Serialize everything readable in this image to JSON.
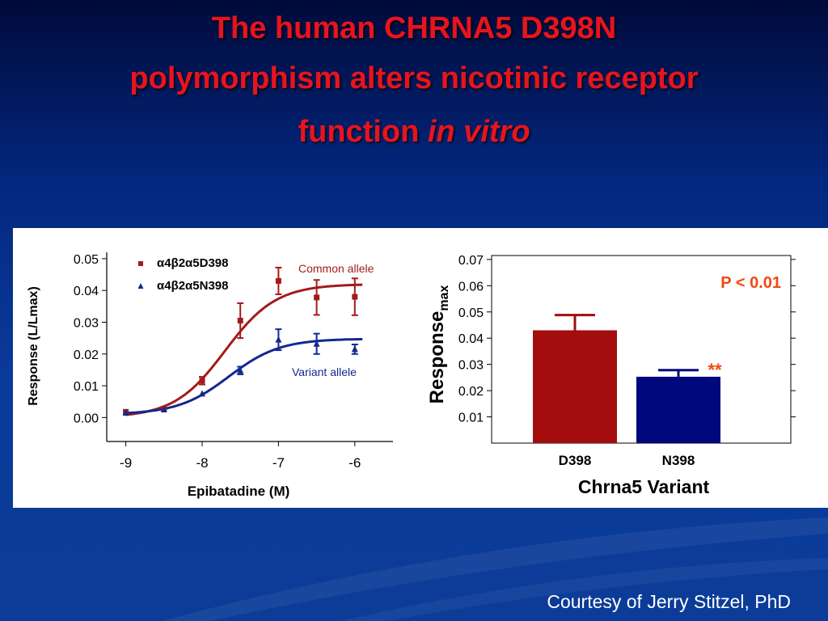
{
  "slide": {
    "title_line1": "The human CHRNA5 D398N",
    "title_line2": "polymorphism alters nicotinic receptor",
    "title_line3_prefix": "function ",
    "title_line3_italic": "in vitro",
    "credit": "Courtesy of Jerry Stitzel, PhD"
  },
  "colors": {
    "title": "#e8141c",
    "red_series": "#a31b1b",
    "blue_series": "#13288f",
    "bar_d398": "#a30d0d",
    "bar_n398": "#00087e",
    "p_value": "#f04a10"
  },
  "chart_data": [
    {
      "type": "scatter",
      "xlabel": "Epibatadine (M)",
      "ylabel": "Response  (L/Lmax)",
      "xlim": [
        -9.25,
        -5.5
      ],
      "ylim": [
        -0.005,
        0.051
      ],
      "x_ticks": [
        -9,
        -8,
        -7,
        -6
      ],
      "x_tick_labels": [
        "-9",
        "-8",
        "-7",
        "-6"
      ],
      "y_ticks": [
        0.0,
        0.01,
        0.02,
        0.03,
        0.04,
        0.05
      ],
      "y_tick_labels": [
        "0.00",
        "0.01",
        "0.02",
        "0.03",
        "0.04",
        "0.05"
      ],
      "legend_position": "top-left",
      "series": [
        {
          "name": "α4β2α5D398",
          "marker": "square",
          "annotation": "Common allele",
          "points": [
            {
              "x": -9.0,
              "y": 0.0018,
              "err": 0.0003
            },
            {
              "x": -8.5,
              "y": 0.0028,
              "err": 0.0003
            },
            {
              "x": -8.0,
              "y": 0.0116,
              "err": 0.0012
            },
            {
              "x": -7.5,
              "y": 0.0305,
              "err": 0.0055
            },
            {
              "x": -7.0,
              "y": 0.043,
              "err": 0.0042
            },
            {
              "x": -6.5,
              "y": 0.0378,
              "err": 0.0055
            },
            {
              "x": -6.0,
              "y": 0.038,
              "err": 0.0058
            }
          ],
          "fit": {
            "bottom": 0.0,
            "top": 0.042,
            "ec50_log": -7.7,
            "hill": 1.3
          }
        },
        {
          "name": "α4β2α5N398",
          "marker": "triangle",
          "annotation": "Variant allele",
          "points": [
            {
              "x": -9.0,
              "y": 0.0015,
              "err": 0.0003
            },
            {
              "x": -8.5,
              "y": 0.0025,
              "err": 0.0003
            },
            {
              "x": -8.0,
              "y": 0.0075,
              "err": 0.0005
            },
            {
              "x": -7.5,
              "y": 0.0148,
              "err": 0.0012
            },
            {
              "x": -7.0,
              "y": 0.0245,
              "err": 0.0033
            },
            {
              "x": -6.5,
              "y": 0.0232,
              "err": 0.0032
            },
            {
              "x": -6.0,
              "y": 0.0215,
              "err": 0.0015
            }
          ],
          "fit": {
            "bottom": 0.001,
            "top": 0.0248,
            "ec50_log": -7.65,
            "hill": 1.3
          }
        }
      ]
    },
    {
      "type": "bar",
      "categories": [
        "D398",
        "N398"
      ],
      "values": [
        0.043,
        0.0253
      ],
      "errors": [
        0.0058,
        0.0025
      ],
      "xlabel": "Chrna5 Variant",
      "ylabel_main": "Response",
      "ylabel_sub": "max",
      "ylim": [
        0.0,
        0.0715
      ],
      "y_ticks": [
        0.01,
        0.02,
        0.03,
        0.04,
        0.05,
        0.06,
        0.07
      ],
      "y_tick_labels": [
        "0.01",
        "0.02",
        "0.03",
        "0.04",
        "0.05",
        "0.06",
        "0.07"
      ],
      "annotation_pvalue": "P < 0.01",
      "annotation_sig": "**"
    }
  ]
}
